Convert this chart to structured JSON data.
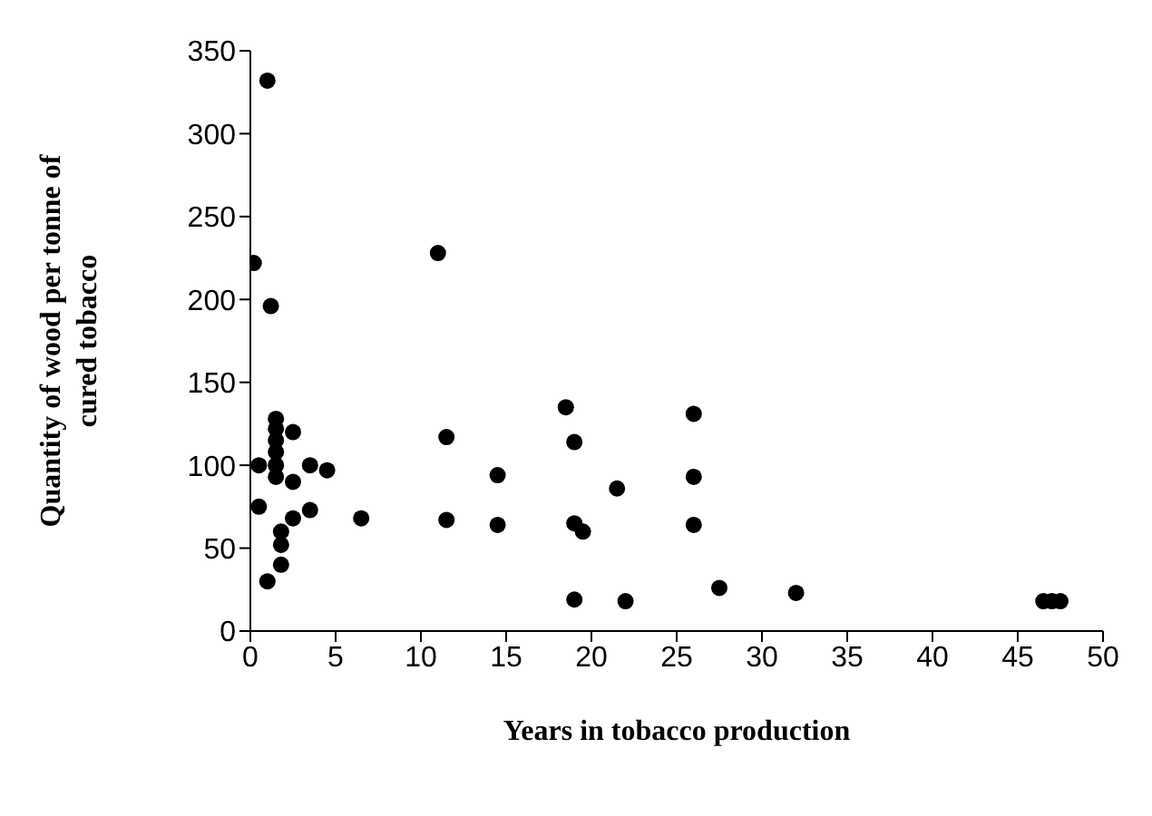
{
  "chart_data": {
    "type": "scatter",
    "xlabel": "Years in tobacco production",
    "ylabel": "Quantity of  wood per tonne of\ncured tobacco",
    "x": [
      1,
      0.2,
      1.2,
      1.5,
      1.5,
      1.5,
      1.5,
      1.5,
      1.5,
      0.5,
      0.5,
      1,
      2.5,
      2.5,
      2.5,
      1.8,
      1.8,
      1.8,
      3.5,
      3.5,
      4.5,
      6.5,
      11,
      11.5,
      11.5,
      14.5,
      14.5,
      18.5,
      19,
      19,
      19.5,
      19,
      21.5,
      22,
      26,
      26,
      26,
      27.5,
      32,
      46.5,
      47,
      47.5
    ],
    "values": [
      332,
      222,
      196,
      128,
      122,
      115,
      108,
      100,
      93,
      100,
      75,
      30,
      120,
      90,
      68,
      60,
      52,
      40,
      100,
      73,
      97,
      68,
      228,
      117,
      67,
      94,
      64,
      135,
      114,
      65,
      60,
      19,
      86,
      18,
      131,
      93,
      64,
      26,
      23,
      18,
      18,
      18
    ],
    "color": "#000000",
    "marker": "circle",
    "grid": false,
    "legend": false,
    "xlim": [
      0,
      50
    ],
    "xticks": [
      0,
      5,
      10,
      15,
      20,
      25,
      30,
      35,
      40,
      45,
      50
    ],
    "ylim": [
      0,
      350
    ],
    "yticks": [
      0,
      50,
      100,
      150,
      200,
      250,
      300,
      350
    ]
  }
}
